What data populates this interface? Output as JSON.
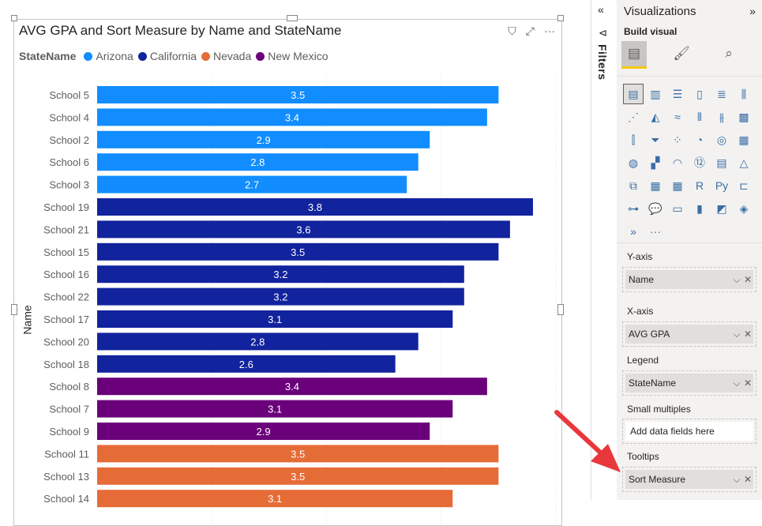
{
  "visual": {
    "title": "AVG GPA and Sort Measure by Name and StateName",
    "header_icons": [
      "filter-icon",
      "focus-mode-icon",
      "more-options-icon"
    ],
    "legend_title": "StateName",
    "legend": [
      {
        "label": "Arizona",
        "color": "#118dff"
      },
      {
        "label": "California",
        "color": "#12239e"
      },
      {
        "label": "Nevada",
        "color": "#e66c37"
      },
      {
        "label": "New Mexico",
        "color": "#6b007b"
      }
    ],
    "y_axis_title": "Name"
  },
  "chart_data": {
    "type": "bar",
    "orientation": "horizontal",
    "title": "AVG GPA and Sort Measure by Name and StateName",
    "ylabel": "Name",
    "xlabel": "",
    "xlim": [
      0,
      4
    ],
    "grid": true,
    "legend_position": "top-left",
    "categories": [
      "School 5",
      "School 4",
      "School 2",
      "School 6",
      "School 3",
      "School 19",
      "School 21",
      "School 15",
      "School 16",
      "School 22",
      "School 17",
      "School 20",
      "School 18",
      "School 8",
      "School 7",
      "School 9",
      "School 11",
      "School 13",
      "School 14"
    ],
    "values": [
      3.5,
      3.4,
      2.9,
      2.8,
      2.7,
      3.8,
      3.6,
      3.5,
      3.2,
      3.2,
      3.1,
      2.8,
      2.6,
      3.4,
      3.1,
      2.9,
      3.5,
      3.5,
      3.1
    ],
    "labels": [
      "3.5",
      "3.4",
      "2.9",
      "2.8",
      "2.7",
      "3.8",
      "3.6",
      "3.5",
      "3.2",
      "3.2",
      "3.1",
      "2.8",
      "2.6",
      "3.4",
      "3.1",
      "2.9",
      "3.5",
      "3.5",
      "3.1"
    ],
    "series_of_category": [
      "Arizona",
      "Arizona",
      "Arizona",
      "Arizona",
      "Arizona",
      "California",
      "California",
      "California",
      "California",
      "California",
      "California",
      "California",
      "California",
      "New Mexico",
      "New Mexico",
      "New Mexico",
      "Nevada",
      "Nevada",
      "Nevada"
    ]
  },
  "filters": {
    "label": "Filters",
    "collapse_icon": "double-chevron-left-icon",
    "icon": "filter-pane-icon"
  },
  "visualizations": {
    "title": "Visualizations",
    "expand_icon": "double-chevron-right-icon",
    "build_label": "Build visual",
    "modes": [
      "build-visual-icon",
      "format-visual-icon",
      "analytics-icon"
    ],
    "icons": [
      {
        "name": "stacked-bar-chart-icon",
        "glyph": "▤",
        "selected": true
      },
      {
        "name": "stacked-column-chart-icon",
        "glyph": "▥"
      },
      {
        "name": "clustered-bar-chart-icon",
        "glyph": "☰"
      },
      {
        "name": "clustered-column-chart-icon",
        "glyph": "▯"
      },
      {
        "name": "100-stacked-bar-chart-icon",
        "glyph": "≣"
      },
      {
        "name": "100-stacked-column-chart-icon",
        "glyph": "⫼"
      },
      {
        "name": "line-chart-icon",
        "glyph": "⋰"
      },
      {
        "name": "area-chart-icon",
        "glyph": "◭"
      },
      {
        "name": "stacked-area-chart-icon",
        "glyph": "≈"
      },
      {
        "name": "line-clustered-column-icon",
        "glyph": "⫴"
      },
      {
        "name": "line-stacked-column-icon",
        "glyph": "⫵"
      },
      {
        "name": "ribbon-chart-icon",
        "glyph": "▩"
      },
      {
        "name": "waterfall-chart-icon",
        "glyph": "⫿"
      },
      {
        "name": "funnel-chart-icon",
        "glyph": "⏷"
      },
      {
        "name": "scatter-chart-icon",
        "glyph": "⁘"
      },
      {
        "name": "pie-chart-icon",
        "glyph": "◔"
      },
      {
        "name": "donut-chart-icon",
        "glyph": "◎"
      },
      {
        "name": "treemap-icon",
        "glyph": "▦"
      },
      {
        "name": "map-icon",
        "glyph": "◍"
      },
      {
        "name": "filled-map-icon",
        "glyph": "▞"
      },
      {
        "name": "gauge-icon",
        "glyph": "◠"
      },
      {
        "name": "card-icon",
        "glyph": "⑫"
      },
      {
        "name": "multi-row-card-icon",
        "glyph": "▤"
      },
      {
        "name": "kpi-icon",
        "glyph": "△"
      },
      {
        "name": "slicer-icon",
        "glyph": "⧉"
      },
      {
        "name": "table-icon",
        "glyph": "▦"
      },
      {
        "name": "matrix-icon",
        "glyph": "▦"
      },
      {
        "name": "r-visual-icon",
        "glyph": "R"
      },
      {
        "name": "python-visual-icon",
        "glyph": "Py"
      },
      {
        "name": "key-influencers-icon",
        "glyph": "⊏"
      },
      {
        "name": "decomposition-tree-icon",
        "glyph": "⊶"
      },
      {
        "name": "qna-icon",
        "glyph": "💬"
      },
      {
        "name": "smart-narrative-icon",
        "glyph": "▭"
      },
      {
        "name": "paginated-report-icon",
        "glyph": "▮"
      },
      {
        "name": "power-automate-icon",
        "glyph": "◩"
      },
      {
        "name": "power-apps-icon",
        "glyph": "◈"
      },
      {
        "name": "power-automate-flow-icon",
        "glyph": "»"
      },
      {
        "name": "more-visuals-icon",
        "glyph": "···"
      }
    ],
    "wells": {
      "y_axis_label": "Y-axis",
      "y_axis_field": "Name",
      "x_axis_label": "X-axis",
      "x_axis_field": "AVG GPA",
      "legend_label": "Legend",
      "legend_field": "StateName",
      "small_multiples_label": "Small multiples",
      "small_multiples_placeholder": "Add data fields here",
      "tooltips_label": "Tooltips",
      "tooltips_field": "Sort Measure"
    }
  },
  "annotation": {
    "type": "arrow",
    "color": "#e8383d",
    "points_to": "Sort Measure"
  }
}
